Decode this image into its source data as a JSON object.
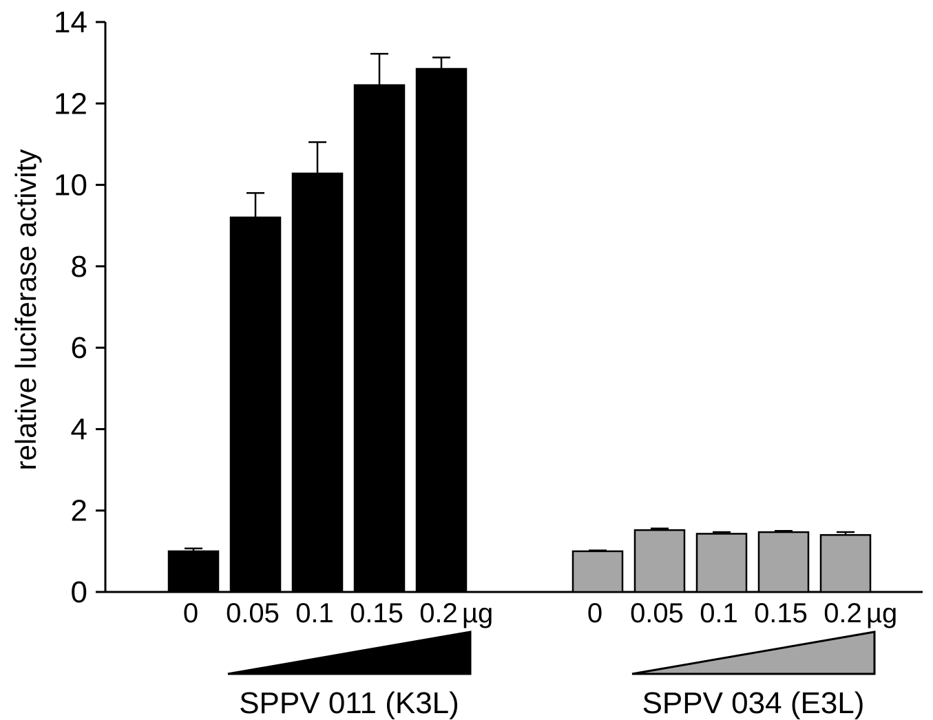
{
  "chart_data": {
    "type": "bar",
    "title": "",
    "ylabel": "relative luciferase activity",
    "xlabel": "",
    "ylim": [
      0,
      14
    ],
    "yticks": [
      0,
      2,
      4,
      6,
      8,
      10,
      12,
      14
    ],
    "ytick_labels": [
      "0",
      "2",
      "4",
      "6",
      "8",
      "10",
      "12",
      "14"
    ],
    "grid": false,
    "legend": "none",
    "groups": [
      {
        "label": "SPPV 011 (K3L)",
        "unit": "µg",
        "color": "#000000",
        "categories": [
          "0",
          "0.05",
          "0.1",
          "0.15",
          "0.2"
        ],
        "values": [
          1.0,
          9.2,
          10.28,
          12.45,
          12.85
        ],
        "errors": [
          0.07,
          0.6,
          0.77,
          0.77,
          0.28
        ]
      },
      {
        "label": "SPPV 034 (E3L)",
        "unit": "µg",
        "color": "#a6a6a6",
        "categories": [
          "0",
          "0.05",
          "0.1",
          "0.15",
          "0.2"
        ],
        "values": [
          1.0,
          1.52,
          1.43,
          1.47,
          1.4
        ],
        "errors": [
          0.02,
          0.04,
          0.04,
          0.03,
          0.07
        ]
      }
    ]
  }
}
